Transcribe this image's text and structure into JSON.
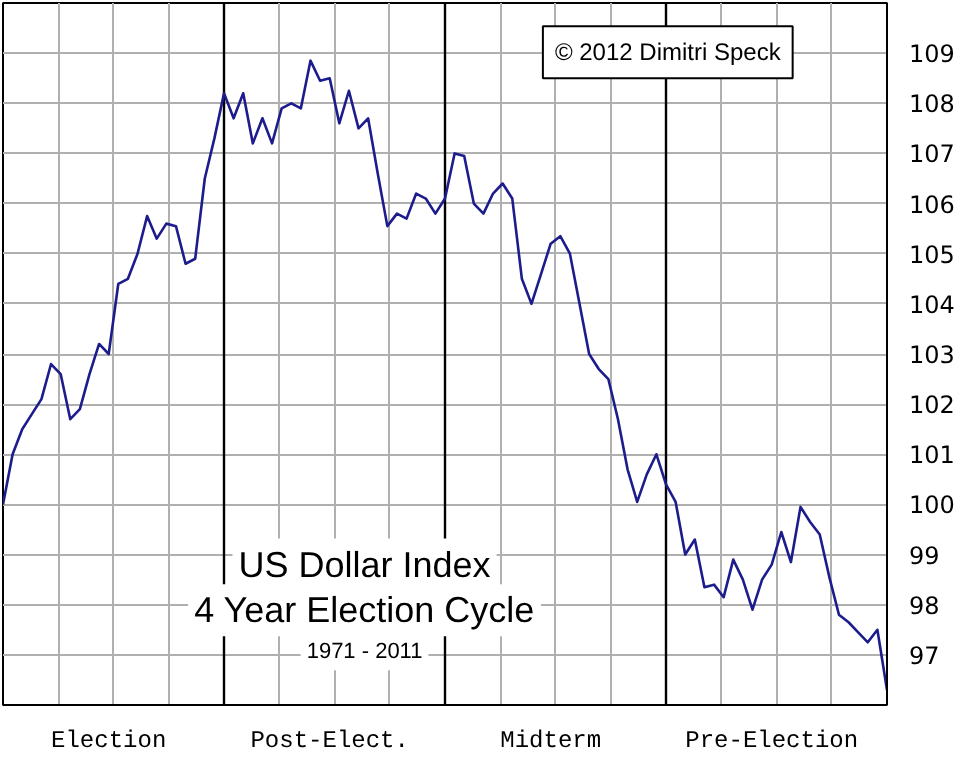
{
  "chart_data": {
    "type": "line",
    "title": "US Dollar Index",
    "subtitle": "4 Year Election Cycle",
    "annotations": [
      "1971 - 2011",
      "© 2012 Dimitri Speck"
    ],
    "categories": [
      null,
      null,
      null,
      null,
      null,
      null,
      null,
      null,
      null,
      null,
      null,
      "Election",
      null,
      null,
      null,
      null,
      null,
      null,
      null,
      null,
      null,
      null,
      null,
      null,
      null,
      null,
      null,
      null,
      null,
      null,
      null,
      null,
      null,
      null,
      "Post-Elect.",
      null,
      null,
      null,
      null,
      null,
      null,
      null,
      null,
      null,
      null,
      null,
      null,
      null,
      null,
      null,
      null,
      null,
      null,
      null,
      null,
      null,
      null,
      "Midterm",
      null,
      null,
      null,
      null,
      null,
      null,
      null,
      null,
      null,
      null,
      null,
      null,
      null,
      null,
      null,
      null,
      null,
      null,
      null,
      null,
      null,
      null,
      "Pre-Election",
      null,
      null,
      null,
      null,
      null,
      null,
      null,
      null,
      null,
      null,
      null,
      null
    ],
    "series": [
      {
        "color": "#1c1c8c",
        "values": [
          100.0,
          101.0,
          101.5,
          101.8,
          102.1,
          102.8,
          102.6,
          101.7,
          101.9,
          102.6,
          103.2,
          103.0,
          104.4,
          104.5,
          105.0,
          105.75,
          105.3,
          105.6,
          105.55,
          104.8,
          104.9,
          106.5,
          107.3,
          108.2,
          107.7,
          108.2,
          107.2,
          107.7,
          107.2,
          107.9,
          108.0,
          107.9,
          108.85,
          108.45,
          108.5,
          107.6,
          108.25,
          107.5,
          107.7,
          106.6,
          105.55,
          105.8,
          105.7,
          106.2,
          106.1,
          105.8,
          106.1,
          107.0,
          106.95,
          106.0,
          105.8,
          106.2,
          106.4,
          106.1,
          104.5,
          104.0,
          104.6,
          105.2,
          105.35,
          105.0,
          104.0,
          103.0,
          102.7,
          102.5,
          101.7,
          100.7,
          100.05,
          100.6,
          101.0,
          100.4,
          100.05,
          99.0,
          99.3,
          98.35,
          98.4,
          98.15,
          98.9,
          98.5,
          97.9,
          98.5,
          98.8,
          99.45,
          98.85,
          99.95,
          99.65,
          99.4,
          98.55,
          97.8,
          97.65,
          97.45,
          97.25,
          97.5,
          96.3
        ]
      }
    ],
    "ylim": [
      96,
      110
    ],
    "yticks": [
      97,
      98,
      99,
      100,
      101,
      102,
      103,
      104,
      105,
      106,
      107,
      108,
      109
    ],
    "grid": true,
    "marker": "none",
    "line_style": "solid"
  }
}
